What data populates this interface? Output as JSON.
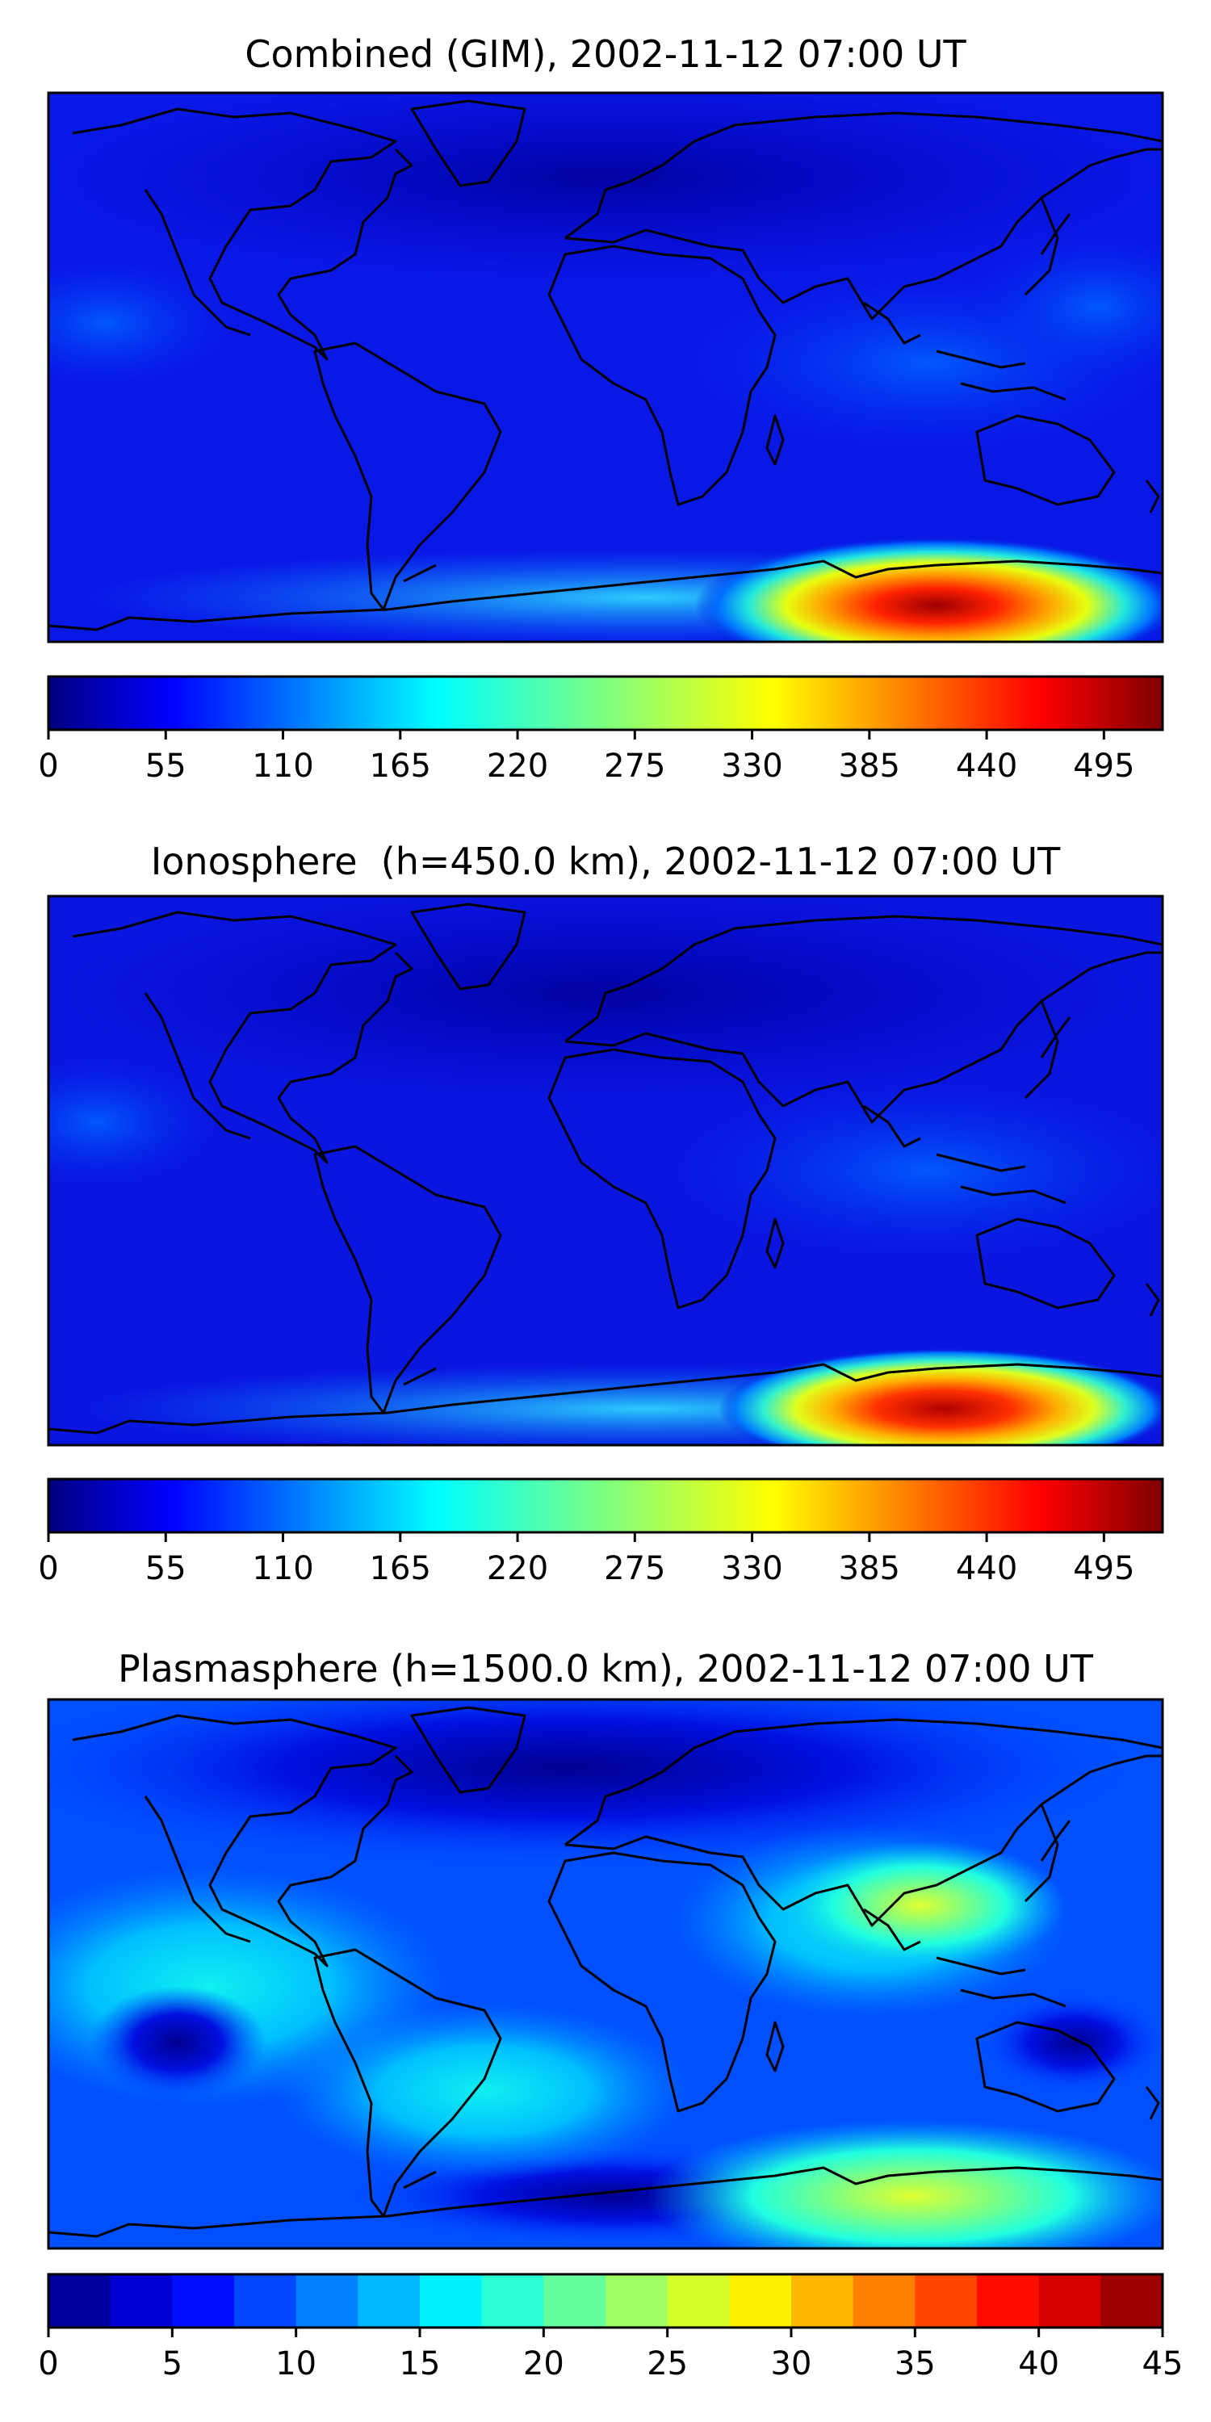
{
  "panels": [
    {
      "title": "Combined (GIM), 2002-11-12 07:00 UT",
      "colorbar": {
        "vmin": 0,
        "vmax": 522.5,
        "style": "continuous",
        "colormap": "jet",
        "ticks": [
          "0",
          "55",
          "110",
          "165",
          "220",
          "275",
          "330",
          "385",
          "440",
          "495"
        ]
      }
    },
    {
      "title": "Ionosphere  (h=450.0 km), 2002-11-12 07:00 UT",
      "colorbar": {
        "vmin": 0,
        "vmax": 522.5,
        "style": "continuous",
        "colormap": "jet",
        "ticks": [
          "0",
          "55",
          "110",
          "165",
          "220",
          "275",
          "330",
          "385",
          "440",
          "495"
        ]
      }
    },
    {
      "title": "Plasmasphere (h=1500.0 km), 2002-11-12 07:00 UT",
      "colorbar": {
        "vmin": 0,
        "vmax": 45,
        "style": "discrete",
        "levels": 18,
        "colormap": "jet",
        "ticks": [
          "0",
          "5",
          "10",
          "15",
          "20",
          "25",
          "30",
          "35",
          "40",
          "45"
        ]
      }
    }
  ],
  "colors": {
    "jet_stops": [
      "#00007f",
      "#0000ff",
      "#007fff",
      "#00ffff",
      "#7fff7f",
      "#ffff00",
      "#ff7f00",
      "#ff0000",
      "#7f0000"
    ],
    "coastline": "#000000",
    "frame": "#000000"
  }
}
